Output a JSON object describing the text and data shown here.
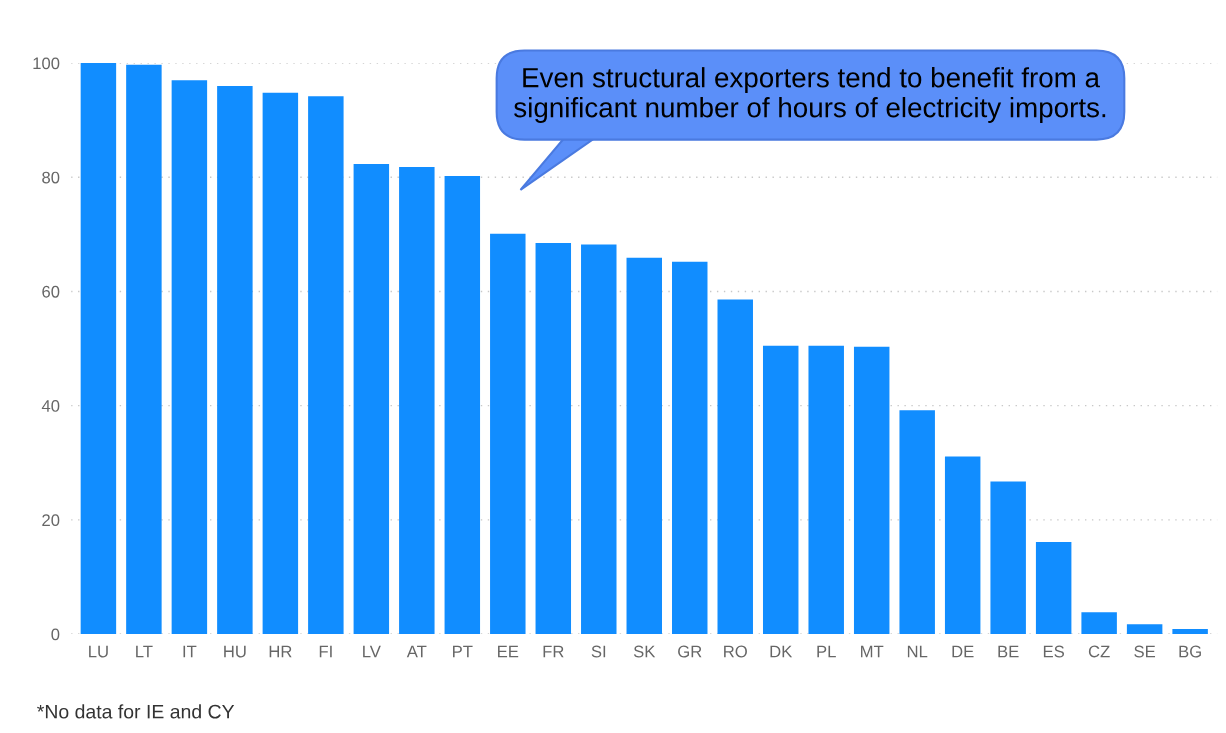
{
  "chart_data": {
    "type": "bar",
    "categories": [
      "LU",
      "LT",
      "IT",
      "HU",
      "HR",
      "FI",
      "LV",
      "AT",
      "PT",
      "EE",
      "FR",
      "SI",
      "SK",
      "GR",
      "RO",
      "DK",
      "PL",
      "MT",
      "NL",
      "DE",
      "BE",
      "ES",
      "CZ",
      "SE",
      "BG"
    ],
    "values": [
      100,
      99.7,
      97.0,
      96.0,
      94.8,
      94.2,
      82.3,
      81.8,
      80.2,
      70.1,
      68.5,
      68.2,
      65.9,
      65.2,
      58.6,
      50.5,
      50.5,
      50.3,
      39.2,
      31.1,
      26.7,
      16.1,
      3.8,
      1.7,
      0.9
    ],
    "color": "#118dff",
    "ylim": [
      0,
      100
    ],
    "yticks": [
      0,
      20,
      40,
      60,
      80,
      100
    ],
    "grid": "y",
    "annotations": [
      "Even structural exporters tend to benefit from a significant number of hours of electricity imports.",
      "*No data for IE and CY"
    ]
  }
}
